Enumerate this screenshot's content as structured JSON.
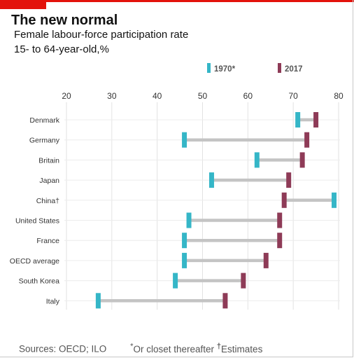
{
  "header": {
    "title": "The new normal",
    "subtitle": "Female labour-force  participation rate",
    "unit": "15- to 64-year-old,%"
  },
  "footer": {
    "sources": "Sources: OECD; ILO",
    "note_mark": "*",
    "note_text": "Or closet thereafter",
    "estimates_mark": "†",
    "estimates_text": "Estimates"
  },
  "colors": {
    "series_1970": "#35b6c7",
    "series_2017": "#8e3b57",
    "connector": "#c4c4c4",
    "accent": "#e3120b"
  },
  "chart_data": {
    "type": "dumbbell",
    "x": [
      20,
      30,
      40,
      50,
      60,
      70,
      80
    ],
    "xlim": [
      20,
      80
    ],
    "grid": true,
    "legend_placement": "top-right",
    "categories": [
      "Denmark",
      "Germany",
      "Britain",
      "Japan",
      "China†",
      "United States",
      "France",
      "OECD average",
      "South Korea",
      "Italy"
    ],
    "series": [
      {
        "name": "1970*",
        "color": "#35b6c7",
        "values": [
          71,
          46,
          62,
          52,
          79,
          47,
          46,
          46,
          44,
          27
        ]
      },
      {
        "name": "2017",
        "color": "#8e3b57",
        "values": [
          75,
          73,
          72,
          69,
          68,
          67,
          67,
          64,
          59,
          55
        ]
      }
    ]
  }
}
